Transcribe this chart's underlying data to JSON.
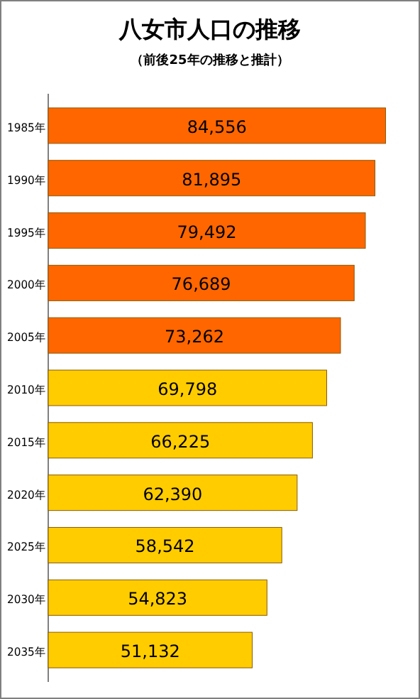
{
  "chart_data": {
    "type": "bar",
    "title": "八女市人口の推移",
    "subtitle": "（前後25年の推移と推計）",
    "categories": [
      "1985年",
      "1990年",
      "1995年",
      "2000年",
      "2005年",
      "2010年",
      "2015年",
      "2020年",
      "2025年",
      "2030年",
      "2035年"
    ],
    "values": [
      84556,
      81895,
      79492,
      76689,
      73262,
      69798,
      66225,
      62390,
      58542,
      54823,
      51132
    ],
    "value_labels": [
      "84,556",
      "81,895",
      "79,492",
      "76,689",
      "73,262",
      "69,798",
      "66,225",
      "62,390",
      "58,542",
      "54,823",
      "51,132"
    ],
    "colors": [
      "#ff6600",
      "#ff6600",
      "#ff6600",
      "#ff6600",
      "#ff6600",
      "#ffcc00",
      "#ffcc00",
      "#ffcc00",
      "#ffcc00",
      "#ffcc00",
      "#ffcc00"
    ],
    "orientation": "horizontal"
  }
}
